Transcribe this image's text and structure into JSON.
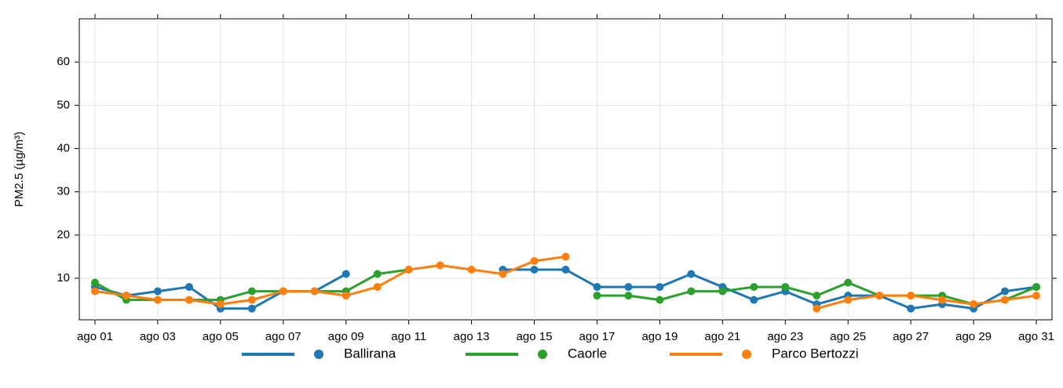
{
  "chart_data": {
    "type": "line",
    "y_label": "PM2.5 (µg/m³)",
    "categories": [
      "ago 01",
      null,
      "ago 03",
      null,
      "ago 05",
      null,
      "ago 07",
      null,
      "ago 09",
      null,
      "ago 11",
      null,
      "ago 13",
      null,
      "ago 15",
      null,
      "ago 17",
      null,
      "ago 19",
      null,
      "ago 21",
      null,
      "ago 23",
      null,
      "ago 25",
      null,
      "ago 27",
      null,
      "ago 29",
      null,
      "ago 31"
    ],
    "series": [
      {
        "name": "Ballirana",
        "color": "#1f77b4",
        "values": [
          8,
          6,
          7,
          8,
          3,
          3,
          7,
          7,
          11,
          null,
          null,
          null,
          null,
          12,
          12,
          12,
          8,
          8,
          8,
          11,
          8,
          5,
          7,
          4,
          6,
          6,
          3,
          4,
          3,
          7,
          8
        ]
      },
      {
        "name": "Caorle",
        "color": "#2ca02c",
        "values": [
          9,
          5,
          5,
          5,
          5,
          7,
          7,
          7,
          7,
          11,
          12,
          null,
          null,
          null,
          null,
          null,
          6,
          6,
          5,
          7,
          7,
          8,
          8,
          6,
          9,
          6,
          6,
          6,
          4,
          5,
          8
        ]
      },
      {
        "name": "Parco Bertozzi",
        "color": "#ff7f0e",
        "values": [
          7,
          6,
          5,
          5,
          4,
          5,
          7,
          7,
          6,
          8,
          12,
          13,
          12,
          11,
          14,
          15,
          null,
          null,
          null,
          null,
          null,
          null,
          null,
          3,
          5,
          6,
          6,
          5,
          4,
          5,
          6
        ]
      }
    ],
    "ylim": [
      0.4,
      70
    ],
    "yticks": [
      10,
      20,
      30,
      40,
      50,
      60
    ],
    "grid": true,
    "legend": "bottom"
  }
}
